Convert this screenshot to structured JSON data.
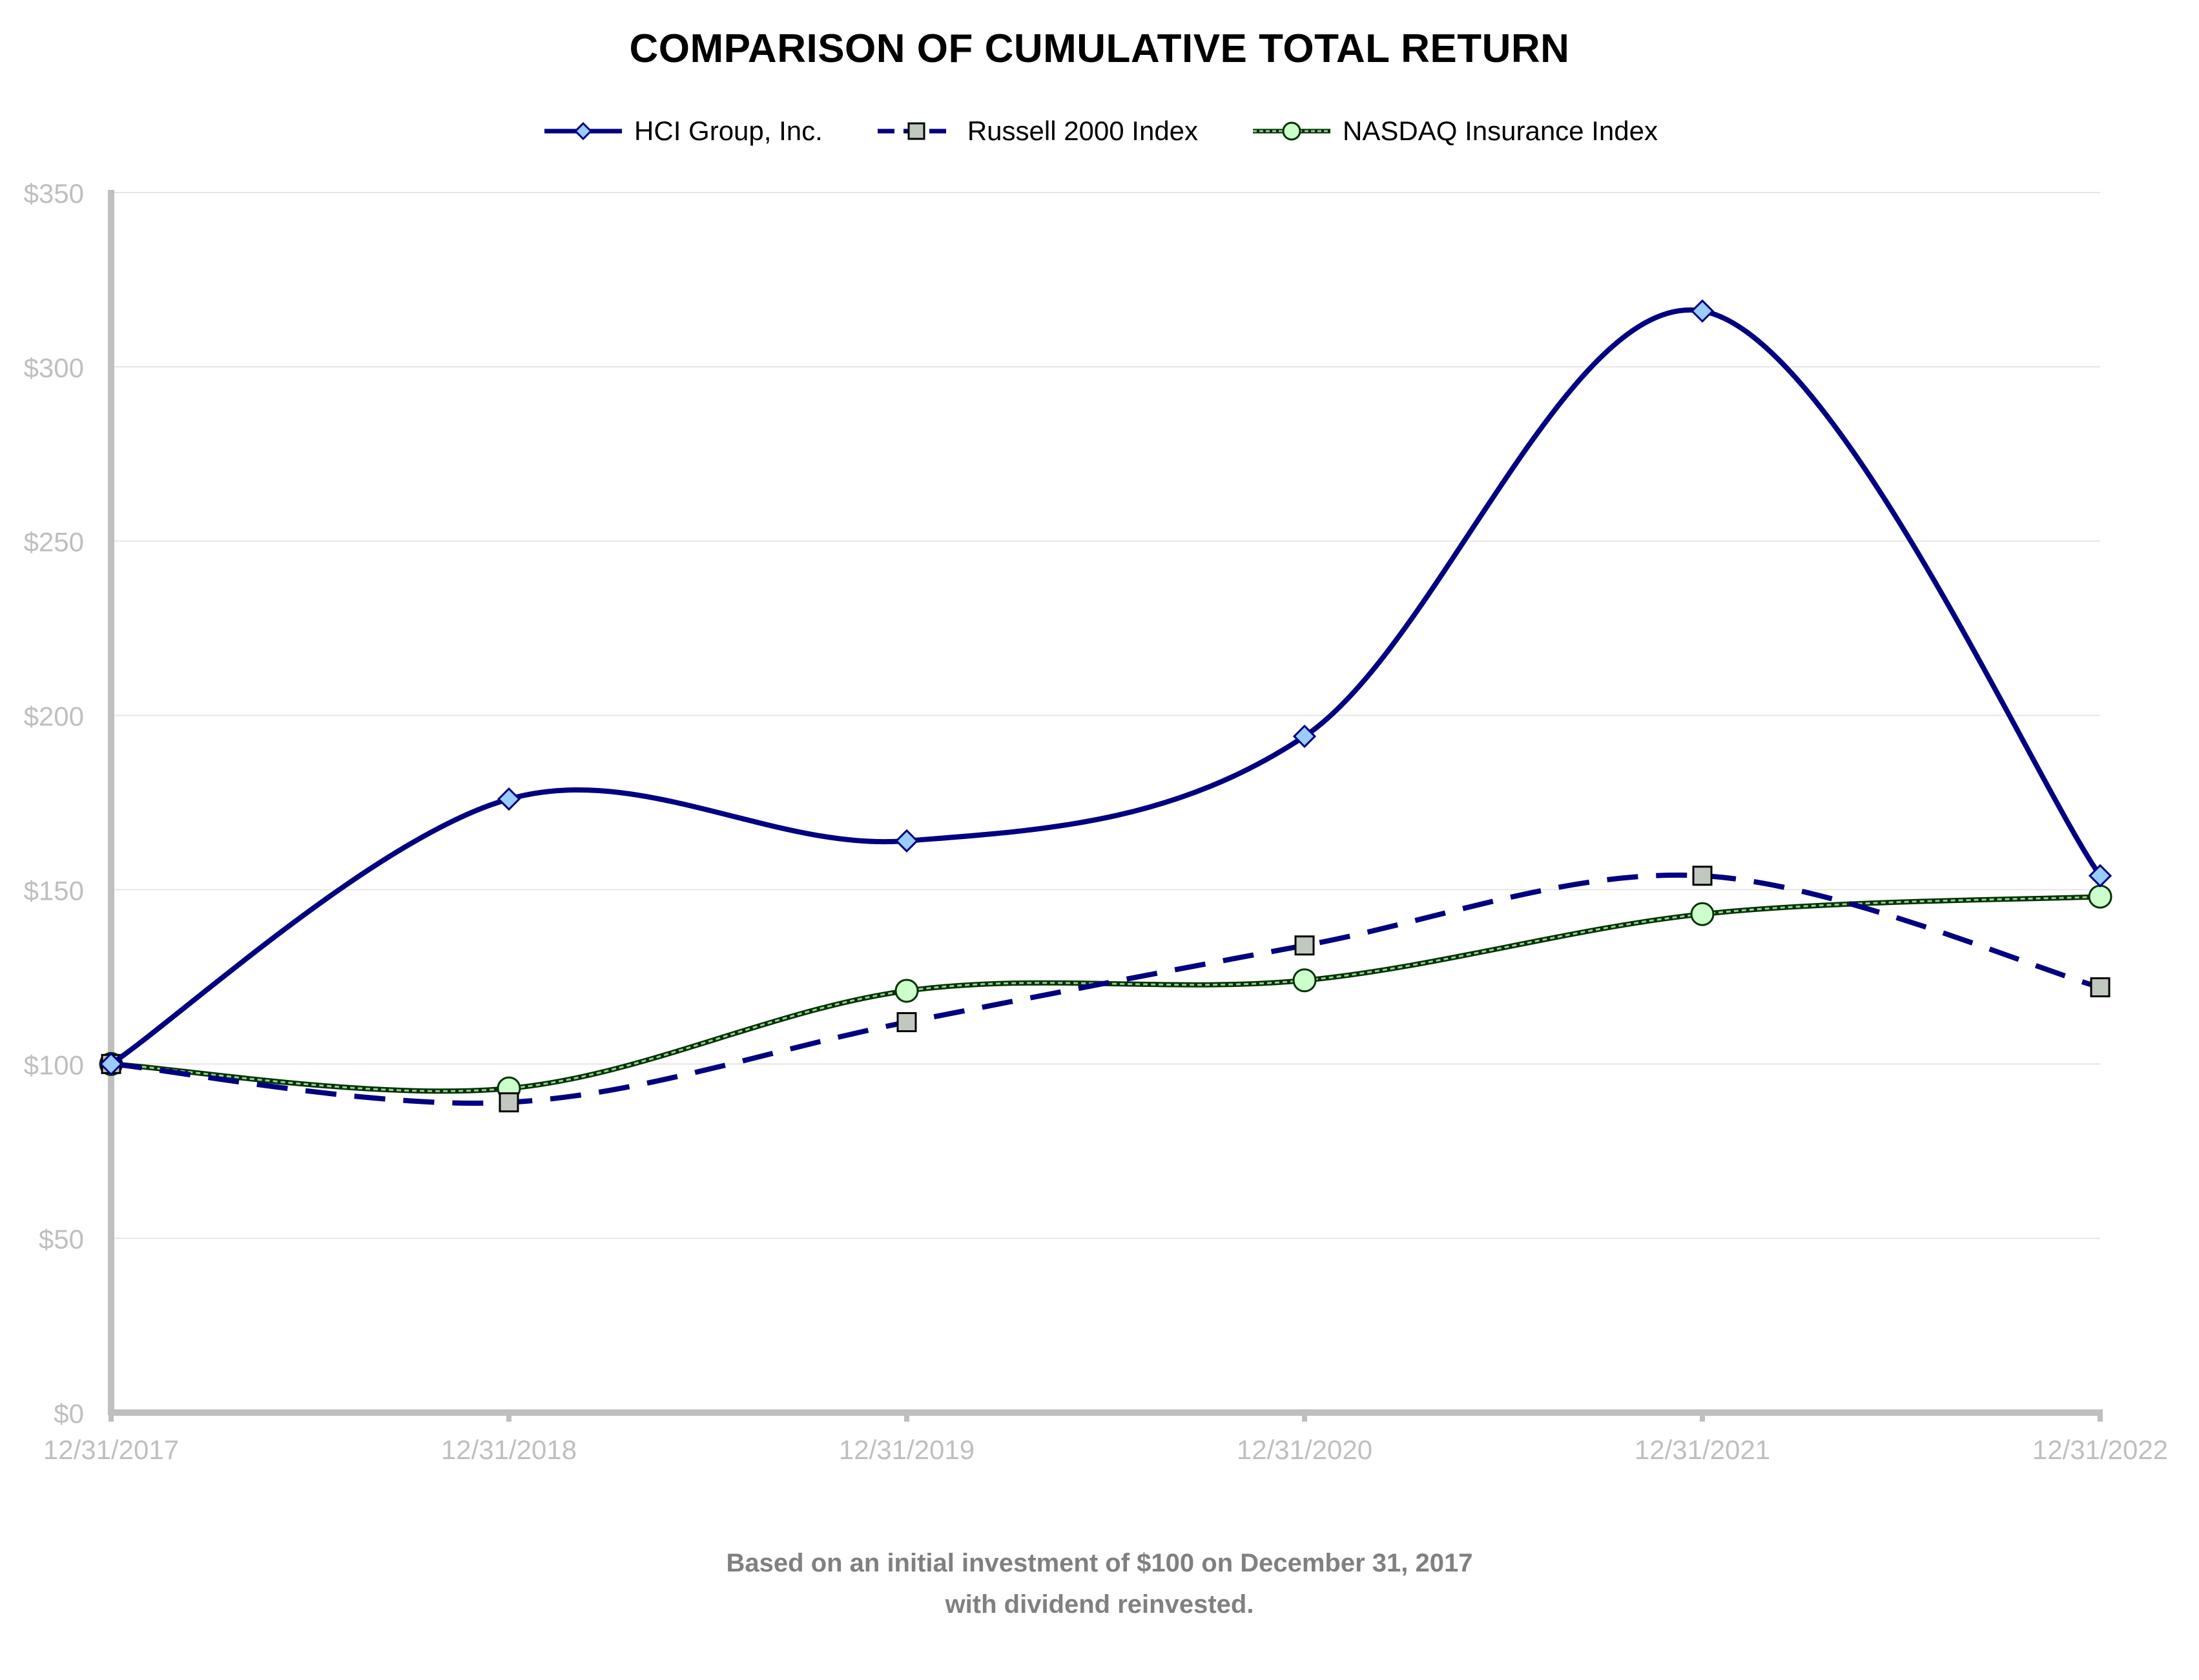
{
  "chart_data": {
    "type": "line",
    "title": "COMPARISON OF CUMULATIVE TOTAL RETURN",
    "categories": [
      "12/31/2017",
      "12/31/2018",
      "12/31/2019",
      "12/31/2020",
      "12/31/2021",
      "12/31/2022"
    ],
    "ylim": [
      0,
      350
    ],
    "yticks": [
      0,
      50,
      100,
      150,
      200,
      250,
      300,
      350
    ],
    "ytick_labels": [
      "$0",
      "$50",
      "$100",
      "$150",
      "$200",
      "$250",
      "$300",
      "$350"
    ],
    "grid": true,
    "legend_position": "top-center",
    "series": [
      {
        "name": "HCI Group, Inc.",
        "values": [
          100,
          176,
          164,
          194,
          316,
          154
        ],
        "color": "#000080",
        "line_style": "solid",
        "marker": "diamond",
        "marker_fill": "#99ccff"
      },
      {
        "name": "Russell 2000 Index",
        "values": [
          100,
          89,
          112,
          134,
          154,
          122
        ],
        "color": "#000080",
        "line_style": "dashed",
        "marker": "square",
        "marker_fill": "#c0c8c0"
      },
      {
        "name": "NASDAQ Insurance Index",
        "values": [
          100,
          93,
          121,
          124,
          143,
          148
        ],
        "color": "#003300",
        "line_style": "dotted",
        "marker": "circle",
        "marker_fill": "#ccffcc"
      }
    ]
  },
  "footnote": {
    "line1": "Based on an initial investment of $100 on December 31, 2017",
    "line2": "with dividend reinvested."
  }
}
